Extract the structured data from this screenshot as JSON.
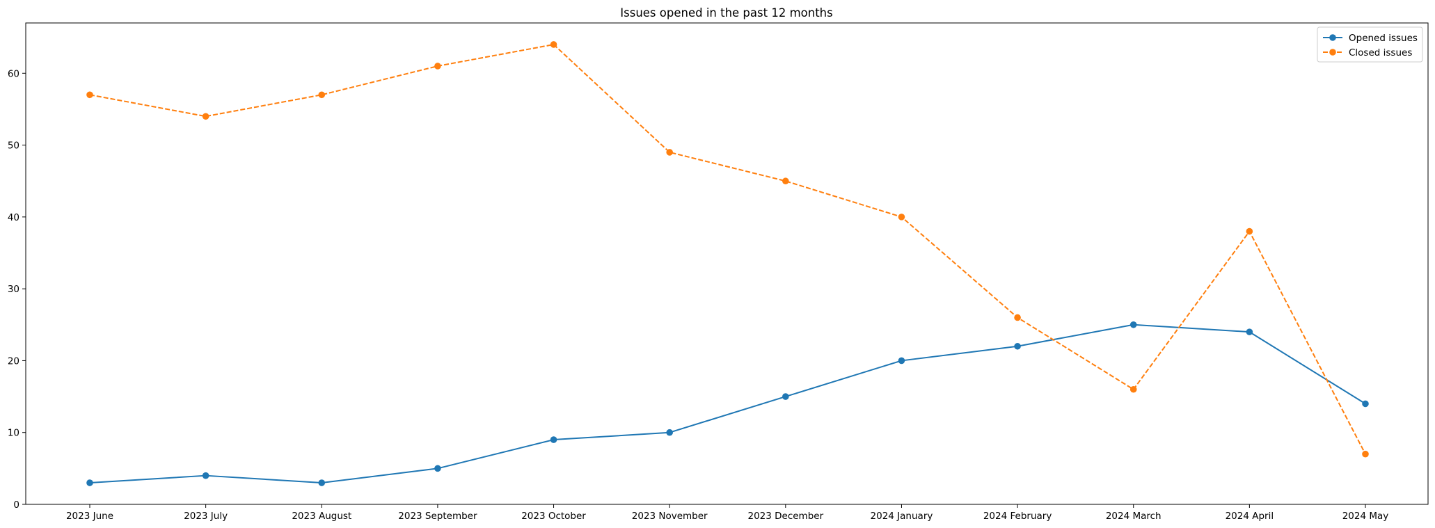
{
  "chart_data": {
    "type": "line",
    "title": "Issues opened in the past 12 months",
    "xlabel": "",
    "ylabel": "",
    "categories": [
      "2023 June",
      "2023 July",
      "2023 August",
      "2023 September",
      "2023 October",
      "2023 November",
      "2023 December",
      "2024 January",
      "2024 February",
      "2024 March",
      "2024 April",
      "2024 May"
    ],
    "ylim": [
      0,
      67
    ],
    "yticks": [
      0,
      10,
      20,
      30,
      40,
      50,
      60
    ],
    "grid": false,
    "legend_position": "top-right",
    "series": [
      {
        "name": "Opened issues",
        "color": "#1f77b4",
        "line_style": "solid",
        "marker": "circle",
        "values": [
          3,
          4,
          3,
          5,
          9,
          10,
          15,
          20,
          22,
          25,
          24,
          14
        ]
      },
      {
        "name": "Closed issues",
        "color": "#ff7f0e",
        "line_style": "dashed",
        "marker": "circle",
        "values": [
          57,
          54,
          57,
          61,
          64,
          49,
          45,
          40,
          26,
          16,
          38,
          7
        ]
      }
    ]
  }
}
